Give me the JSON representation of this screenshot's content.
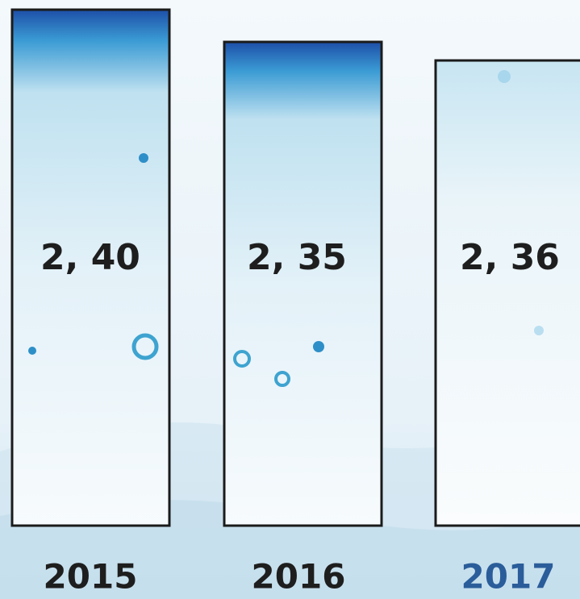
{
  "items": [
    {
      "value": "2, 40",
      "year": "2015"
    },
    {
      "value": "2, 35",
      "year": "2016"
    },
    {
      "value": "2, 36",
      "year": "2017"
    }
  ]
}
